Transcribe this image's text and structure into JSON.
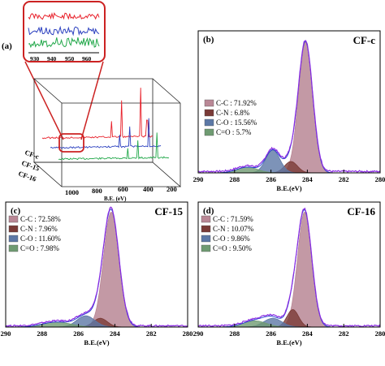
{
  "panel_a": {
    "letter": "(a)",
    "inset_ticks": [
      "930",
      "940",
      "950",
      "960"
    ],
    "depth_labels": [
      "CF-c",
      "CF-15",
      "CF-16"
    ],
    "x_ticks": [
      "1000",
      "800",
      "600",
      "400",
      "200"
    ],
    "xlabel": "B.E. (eV)",
    "colors": {
      "CF-c": "#e8202a",
      "CF-15": "#2a3fbf",
      "CF-16": "#22a84a",
      "frame": "#cc2222"
    }
  },
  "chart_data": [
    {
      "type": "area",
      "panel": "(b)",
      "title": "CF-c",
      "xlabel": "B.E.(eV)",
      "x_reversed": true,
      "xlim": [
        280,
        290
      ],
      "x_ticks": [
        "290",
        "288",
        "286",
        "284",
        "282",
        "280"
      ],
      "grid": false,
      "legend_position": "left",
      "series": [
        {
          "name": "C-C : 71.92%",
          "color": "#b98795",
          "center": 284.1,
          "height": 0.92,
          "width": 0.55
        },
        {
          "name": "C-N : 6.8%",
          "color": "#7a3a36",
          "center": 284.9,
          "height": 0.08,
          "width": 0.5
        },
        {
          "name": "C-O : 15.56%",
          "color": "#5c78a6",
          "center": 285.9,
          "height": 0.16,
          "width": 0.55
        },
        {
          "name": "C=O : 5.7%",
          "color": "#6f9b72",
          "center": 287.3,
          "height": 0.04,
          "width": 0.8
        }
      ]
    },
    {
      "type": "area",
      "panel": "(c)",
      "title": "CF-15",
      "xlabel": "B.E.(eV)",
      "x_reversed": true,
      "xlim": [
        280,
        290
      ],
      "x_ticks": [
        "290",
        "288",
        "286",
        "284",
        "282",
        "280"
      ],
      "grid": false,
      "legend_position": "left",
      "series": [
        {
          "name": "C-C : 72.58%",
          "color": "#b98795",
          "center": 284.2,
          "height": 0.92,
          "width": 0.6
        },
        {
          "name": "C-N : 7.96%",
          "color": "#7a3a36",
          "center": 284.8,
          "height": 0.07,
          "width": 0.55
        },
        {
          "name": "C-O : 11.60%",
          "color": "#5c78a6",
          "center": 285.6,
          "height": 0.09,
          "width": 0.7
        },
        {
          "name": "C=O : 7.98%",
          "color": "#6f9b72",
          "center": 287.2,
          "height": 0.04,
          "width": 1.1
        }
      ]
    },
    {
      "type": "area",
      "panel": "(d)",
      "title": "CF-16",
      "xlabel": "B.E.(eV)",
      "x_reversed": true,
      "xlim": [
        280,
        290
      ],
      "x_ticks": [
        "290",
        "288",
        "286",
        "284",
        "282",
        "280"
      ],
      "grid": false,
      "legend_position": "left",
      "series": [
        {
          "name": "C-C : 71.59%",
          "color": "#b98795",
          "center": 284.15,
          "height": 0.92,
          "width": 0.55
        },
        {
          "name": "C-N : 10.07%",
          "color": "#7a3a36",
          "center": 284.8,
          "height": 0.14,
          "width": 0.45
        },
        {
          "name": "C-O : 9.86%",
          "color": "#5c78a6",
          "center": 285.9,
          "height": 0.07,
          "width": 0.7
        },
        {
          "name": "C=O : 9.50%",
          "color": "#6f9b72",
          "center": 286.9,
          "height": 0.05,
          "width": 0.9
        }
      ]
    }
  ]
}
